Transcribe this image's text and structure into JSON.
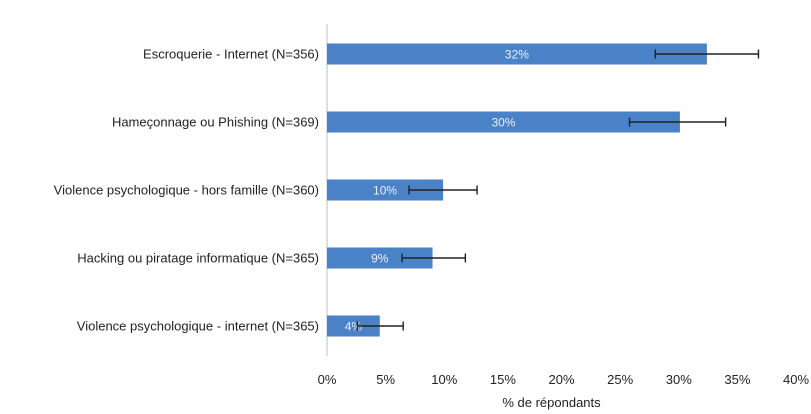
{
  "chart_data": {
    "type": "bar",
    "orientation": "horizontal",
    "title": "",
    "xlabel": "% de répondants",
    "ylabel": "",
    "xlim": [
      0,
      40
    ],
    "xticks": [
      0,
      5,
      10,
      15,
      20,
      25,
      30,
      35,
      40
    ],
    "tick_suffix": "%",
    "grid": false,
    "legend": "none",
    "bar_color": "#4a82c8",
    "categories": [
      "Escroquerie -  Internet (N=356)",
      "Hameçonnage ou Phishing (N=369)",
      "Violence psychologique - hors famille (N=360)",
      "Hacking ou piratage informatique (N=365)",
      "Violence psychologique - internet (N=365)"
    ],
    "values": [
      32.4,
      30.1,
      9.9,
      9.0,
      4.5
    ],
    "data_labels": [
      "32%",
      "30%",
      "10%",
      "9%",
      "4%"
    ],
    "error_bars": [
      [
        28.0,
        36.8
      ],
      [
        25.8,
        34.0
      ],
      [
        7.0,
        12.8
      ],
      [
        6.4,
        11.8
      ],
      [
        2.6,
        6.5
      ]
    ]
  }
}
